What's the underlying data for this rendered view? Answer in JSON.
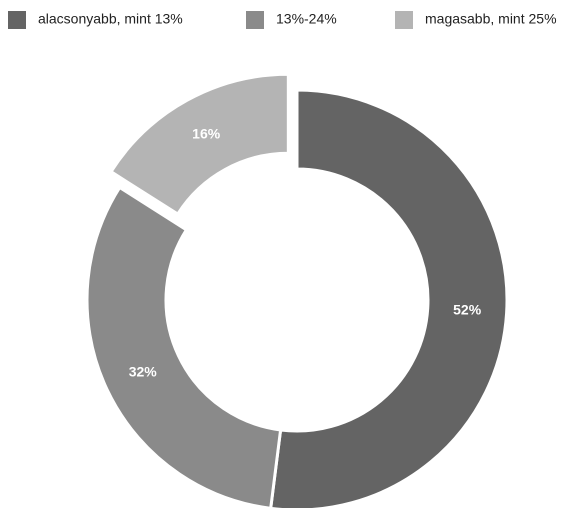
{
  "chart_data": {
    "type": "donut",
    "categories": [
      "alacsonyabb, mint 13%",
      "13%-24%",
      "magasabb, mint 25%"
    ],
    "values": [
      52,
      32,
      16
    ],
    "value_labels": [
      "52%",
      "32%",
      "16%"
    ],
    "colors": [
      "#646464",
      "#8a8a8a",
      "#b4b4b4"
    ],
    "exploded": [
      false,
      false,
      true
    ],
    "legend": "top"
  }
}
